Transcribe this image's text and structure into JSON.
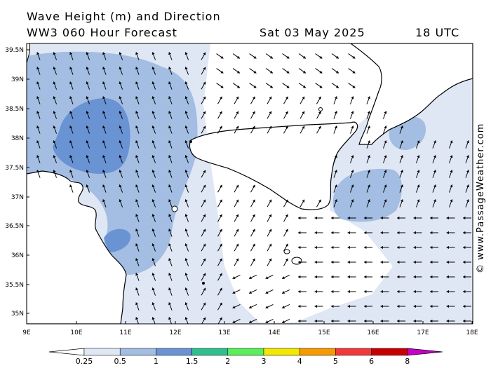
{
  "header": {
    "title": "Wave Height (m) and Direction",
    "model": "WW3 060 Hour Forecast",
    "date": "Sat 03 May 2025",
    "time": "18 UTC"
  },
  "credit": "© www.PassageWeather.com",
  "axes": {
    "lat_labels": [
      "39.5N",
      "39N",
      "38.5N",
      "38N",
      "37.5N",
      "37N",
      "36.5N",
      "36N",
      "35.5N",
      "35N"
    ],
    "lon_labels": [
      "9E",
      "10E",
      "11E",
      "12E",
      "13E",
      "14E",
      "15E",
      "16E",
      "17E",
      "18E"
    ]
  },
  "legend": {
    "ticks": [
      "0.25",
      "0.5",
      "1",
      "1.5",
      "2",
      "3",
      "4",
      "5",
      "6",
      "8"
    ],
    "colors": [
      "#ffffff",
      "#dfe6f4",
      "#a3bde3",
      "#6a93d4",
      "#2fbf8f",
      "#5aef5a",
      "#f4e800",
      "#f79a00",
      "#f03a3a",
      "#c80000",
      "#c800c8"
    ]
  },
  "colors": {
    "very_light": "#dfe6f4",
    "light": "#a3bde3",
    "medium": "#6a93d4",
    "land": "#ffffff",
    "coast": "#000000"
  }
}
